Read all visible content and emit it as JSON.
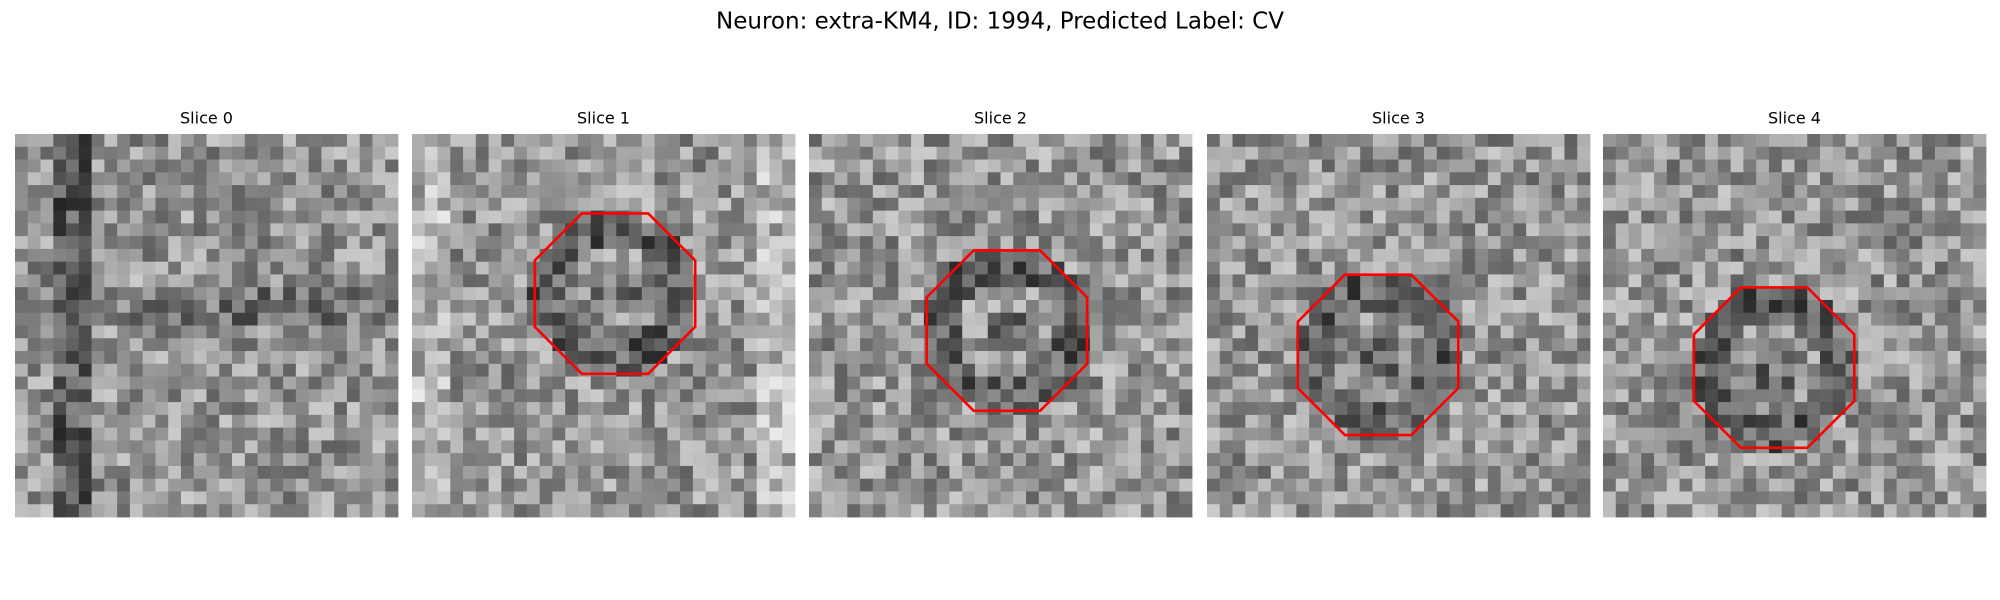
{
  "title": "Neuron: extra-KM4, ID: 1994, Predicted Label: CV",
  "panels": [
    {
      "title": "Slice 0"
    },
    {
      "title": "Slice 1"
    },
    {
      "title": "Slice 2"
    },
    {
      "title": "Slice 3"
    },
    {
      "title": "Slice 4"
    }
  ]
}
